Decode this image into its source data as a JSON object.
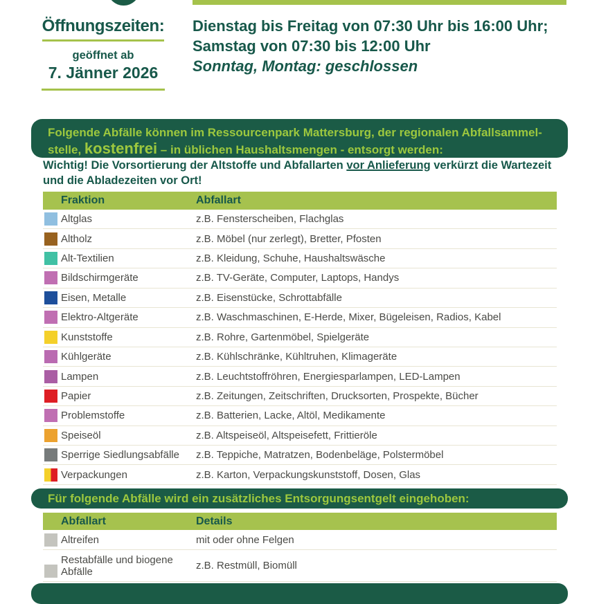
{
  "colors": {
    "dark_green": "#1B5B46",
    "accent_green": "#A5C24B",
    "banner_text_green": "#9DC83E",
    "body_text": "#4A4A46"
  },
  "masthead": {
    "opening_title": "Öffnungszeiten:",
    "open_from_label": "geöffnet ab",
    "open_from_date": "7. Jänner 2026",
    "hours_line1": "Dienstag bis Freitag von 07:30 Uhr bis 16:00 Uhr;",
    "hours_line2": "Samstag von 07:30 bis 12:00 Uhr",
    "closed_line": "Sonntag, Montag: geschlossen"
  },
  "free_banner": {
    "line1": "Folgende Abfälle können im Ressourcenpark Mattersburg, der regionalen Abfallsammel-",
    "line2_before": "stelle, ",
    "highlight": "kostenfrei",
    "line2_after": " – in üblichen Haushaltsmengen - entsorgt werden:"
  },
  "important_note": {
    "before": "Wichtig! Die Vorsortierung der Altstoffe und Abfallarten ",
    "underlined": "vor Anlieferung",
    "after": " verkürzt die Wartezeit und die Abladezeiten vor Ort!"
  },
  "free_table": {
    "col1": "Fraktion",
    "col2": "Abfallart",
    "rows": [
      {
        "swatch": [
          "#90BFE0"
        ],
        "label": "Altglas",
        "desc": "z.B. Fensterscheiben, Flachglas"
      },
      {
        "swatch": [
          "#98621F"
        ],
        "label": "Altholz",
        "desc": "z.B. Möbel (nur zerlegt), Bretter, Pfosten"
      },
      {
        "swatch": [
          "#41C1A4"
        ],
        "label": "Alt-Textilien",
        "desc": "z.B. Kleidung, Schuhe, Haushaltswäsche"
      },
      {
        "swatch": [
          "#C06FB2"
        ],
        "label": "Bildschirmgeräte",
        "desc": "z.B. TV-Geräte, Computer, Laptops, Handys"
      },
      {
        "swatch": [
          "#1E4F9B"
        ],
        "label": "Eisen, Metalle",
        "desc": "z.B. Eisenstücke, Schrottabfälle"
      },
      {
        "swatch": [
          "#C06FB2"
        ],
        "label": "Elektro-Altgeräte",
        "desc": "z.B. Waschmaschinen, E-Herde, Mixer, Bügeleisen, Radios, Kabel"
      },
      {
        "swatch": [
          "#F4D02A"
        ],
        "label": "Kunststoffe",
        "desc": "z.B. Rohre, Gartenmöbel, Spielgeräte"
      },
      {
        "swatch": [
          "#BA6BB1"
        ],
        "label": "Kühlgeräte",
        "desc": "z.B. Kühlschränke, Kühltruhen, Klimageräte"
      },
      {
        "swatch": [
          "#AA5EA4"
        ],
        "label": "Lampen",
        "desc": "z.B. Leuchtstoffröhren, Energiesparlampen, LED-Lampen"
      },
      {
        "swatch": [
          "#DE1E24"
        ],
        "label": "Papier",
        "desc": "z.B. Zeitungen, Zeitschriften, Drucksorten, Prospekte, Bücher"
      },
      {
        "swatch": [
          "#C06FB2"
        ],
        "label": "Problemstoffe",
        "desc": "z.B. Batterien, Lacke, Altöl, Medikamente"
      },
      {
        "swatch": [
          "#ECA22F"
        ],
        "label": "Speiseöl",
        "desc": "z.B. Altspeiseöl, Altspeisefett, Frittieröle"
      },
      {
        "swatch": [
          "#777B7B"
        ],
        "label": "Sperrige Siedlungsabfälle",
        "desc": "z.B. Teppiche, Matratzen, Bodenbeläge, Polstermöbel"
      },
      {
        "swatch": [
          "#F4D02A",
          "#DE1E24"
        ],
        "label": "Verpackungen",
        "desc": "z.B. Karton, Verpackungskunststoff, Dosen, Glas"
      }
    ]
  },
  "fee_banner": {
    "text": "Für folgende Abfälle wird ein zusätzliches Entsorgungsentgelt eingehoben:"
  },
  "fee_table": {
    "col1": "Abfallart",
    "col2": "Details",
    "rows": [
      {
        "swatch": [
          "#C4C4BE"
        ],
        "label": "Altreifen",
        "desc": "mit oder ohne Felgen",
        "two_line": false
      },
      {
        "swatch": [
          "#C4C4BE"
        ],
        "label": "Restabfälle und biogene Abfälle",
        "desc": "z.B. Restmüll, Biomüll",
        "two_line": true
      }
    ]
  }
}
